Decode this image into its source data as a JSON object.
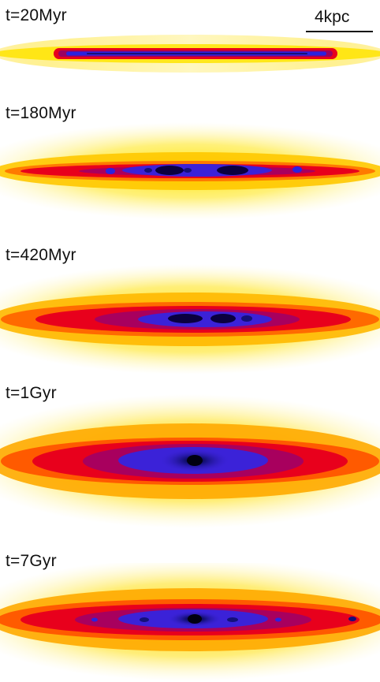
{
  "panels": [
    {
      "label": "t=20Myr"
    },
    {
      "label": "t=180Myr"
    },
    {
      "label": "t=420Myr"
    },
    {
      "label": "t=1Gyr"
    },
    {
      "label": "t=7Gyr"
    }
  ],
  "scale_bar": {
    "label": "4kpc"
  },
  "colors": {
    "outer": "#ffe700",
    "mid": "#ff8c00",
    "red": "#e8001c",
    "magenta": "#b0005a",
    "blue": "#2a22e0",
    "core": "#080028"
  }
}
